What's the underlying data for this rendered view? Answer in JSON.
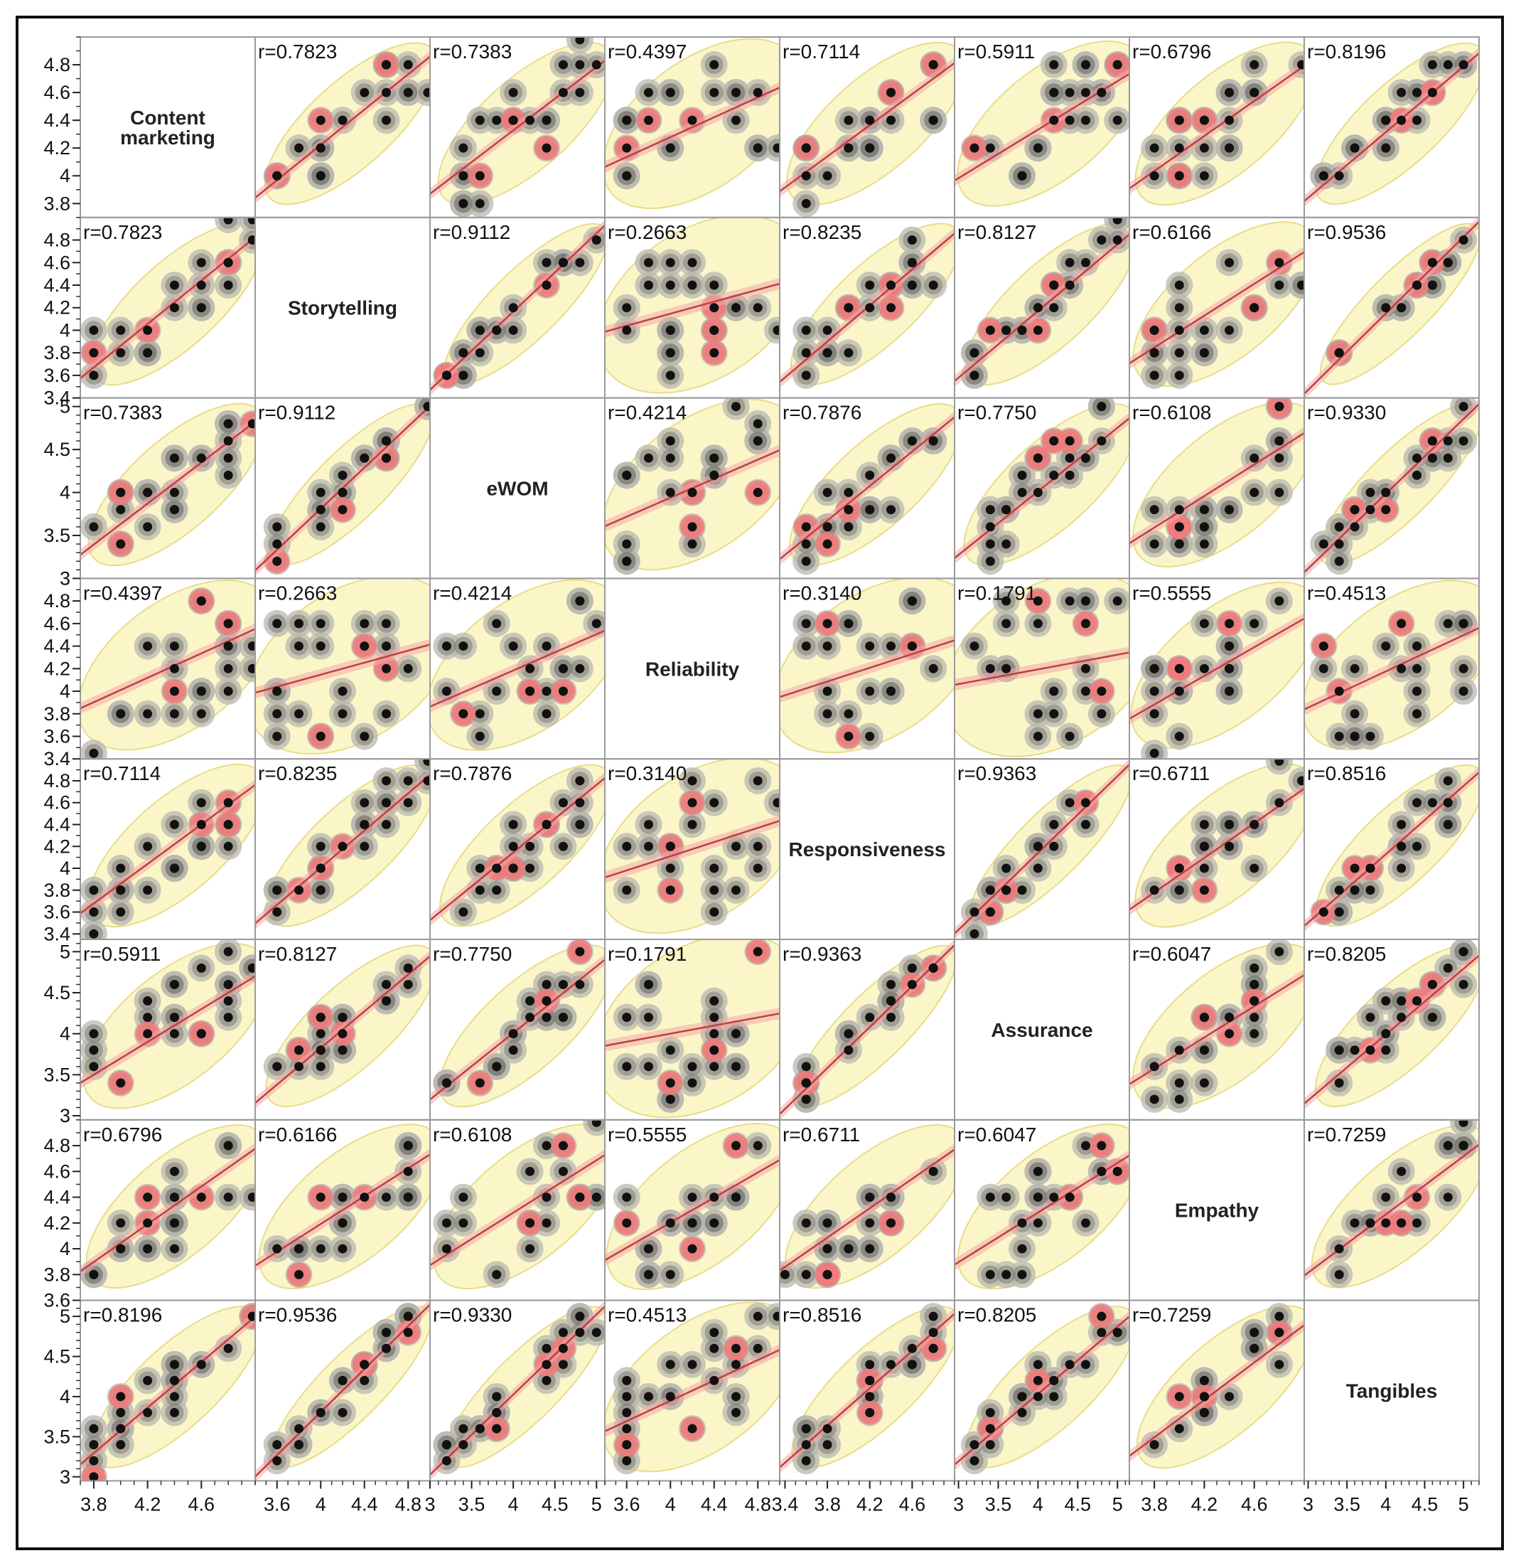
{
  "chart_data": {
    "type": "scatter",
    "subtype": "scatterplot-matrix",
    "variables": [
      "Content marketing",
      "Storytelling",
      "eWOM",
      "Reliability",
      "Responsiveness",
      "Assurance",
      "Empathy",
      "Tangibles"
    ],
    "diagonal_labels": [
      [
        "Content",
        "marketing"
      ],
      [
        "Storytelling"
      ],
      [
        "eWOM"
      ],
      [
        "Reliability"
      ],
      [
        "Responsiveness"
      ],
      [
        "Assurance"
      ],
      [
        "Empathy"
      ],
      [
        "Tangibles"
      ]
    ],
    "correlations": [
      [
        null,
        "0.7823",
        "0.7383",
        "0.4397",
        "0.7114",
        "0.5911",
        "0.6796",
        "0.8196"
      ],
      [
        "0.7823",
        null,
        "0.9112",
        "0.2663",
        "0.8235",
        "0.8127",
        "0.6166",
        "0.9536"
      ],
      [
        "0.7383",
        "0.9112",
        null,
        "0.4214",
        "0.7876",
        "0.7750",
        "0.6108",
        "0.9330"
      ],
      [
        "0.4397",
        "0.2663",
        "0.4214",
        null,
        "0.3140",
        "0.1791",
        "0.5555",
        "0.4513"
      ],
      [
        "0.7114",
        "0.8235",
        "0.7876",
        "0.3140",
        null,
        "0.9363",
        "0.6711",
        "0.8516"
      ],
      [
        "0.5911",
        "0.8127",
        "0.7750",
        "0.1791",
        "0.9363",
        null,
        "0.6047",
        "0.8205"
      ],
      [
        "0.6796",
        "0.6166",
        "0.6108",
        "0.5555",
        "0.6711",
        "0.6047",
        null,
        "0.7259"
      ],
      [
        "0.8196",
        "0.9536",
        "0.9330",
        "0.4513",
        "0.8516",
        "0.8205",
        "0.7259",
        null
      ]
    ],
    "r_prefix": "r=",
    "y_ticks": [
      [
        "3.8",
        "4",
        "4.2",
        "4.4",
        "4.6",
        "4.8"
      ],
      [
        "3.4",
        "3.6",
        "3.8",
        "4",
        "4.2",
        "4.4",
        "4.6",
        "4.8"
      ],
      [
        "3",
        "3.5",
        "4",
        "4.5",
        "5"
      ],
      [
        "3.4",
        "3.6",
        "3.8",
        "4",
        "4.2",
        "4.4",
        "4.6",
        "4.8"
      ],
      [
        "3.4",
        "3.6",
        "3.8",
        "4",
        "4.2",
        "4.4",
        "4.6",
        "4.8"
      ],
      [
        "3",
        "3.5",
        "4",
        "4.5",
        "5"
      ],
      [
        "3.6",
        "3.8",
        "4",
        "4.2",
        "4.4",
        "4.6",
        "4.8"
      ],
      [
        "3",
        "3.5",
        "4",
        "4.5",
        "5"
      ]
    ],
    "x_ticks": [
      [
        "3.8",
        "4.2",
        "4.6"
      ],
      [
        "3.6",
        "4",
        "4.4",
        "4.8"
      ],
      [
        "3",
        "3.5",
        "4",
        "4.5",
        "5"
      ],
      [
        "3.6",
        "4",
        "4.4",
        "4.8"
      ],
      [
        "3.4",
        "3.8",
        "4.2",
        "4.6"
      ],
      [
        "3",
        "3.5",
        "4",
        "4.5",
        "5"
      ],
      [
        "3.8",
        "4.2",
        "4.6"
      ],
      [
        "3",
        "3.5",
        "4",
        "4.5",
        "5"
      ]
    ],
    "ranges": [
      [
        3.7,
        5.0
      ],
      [
        3.4,
        5.0
      ],
      [
        3.0,
        5.1
      ],
      [
        3.4,
        5.0
      ],
      [
        3.35,
        5.0
      ],
      [
        2.95,
        5.15
      ],
      [
        3.6,
        5.0
      ],
      [
        2.95,
        5.2
      ]
    ],
    "grid": false,
    "elements": [
      "density ellipse",
      "fitted line with confidence band",
      "heat contours",
      "points"
    ],
    "colors": {
      "ellipse_fill": "#fbf6c8",
      "ellipse_stroke": "#e8dc88",
      "fit_line": "#b8433f",
      "fit_band": "#f4a8a8",
      "contour_outer": "#b8b7b0",
      "contour_inner": "#7e7d74",
      "hotspot": "#f07c7c",
      "point": "#111111",
      "panel_border": "#9a9a9a"
    }
  }
}
